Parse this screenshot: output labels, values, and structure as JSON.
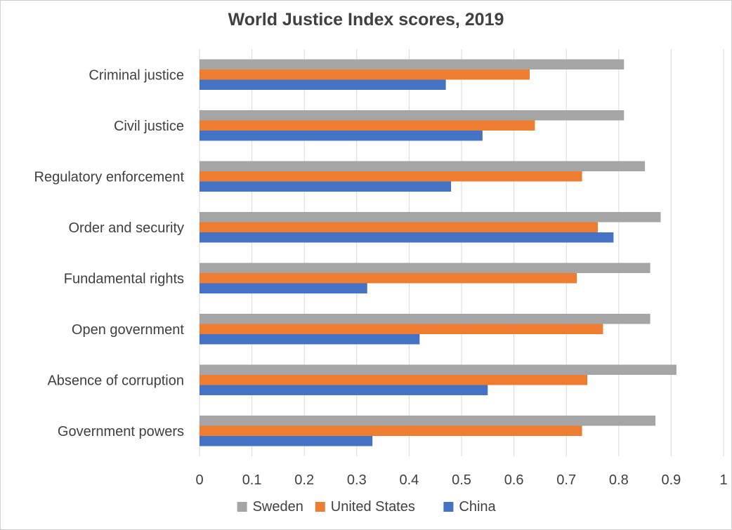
{
  "chart_data": {
    "type": "bar",
    "orientation": "horizontal",
    "title": "World Justice Index scores, 2019",
    "xlabel": "",
    "ylabel": "",
    "xlim": [
      0,
      1
    ],
    "xticks": [
      "0",
      "0.1",
      "0.2",
      "0.3",
      "0.4",
      "0.5",
      "0.6",
      "0.7",
      "0.8",
      "0.9",
      "1"
    ],
    "grid": true,
    "legend_position": "bottom",
    "categories": [
      "Criminal justice",
      "Civil justice",
      "Regulatory enforcement",
      "Order and security",
      "Fundamental rights",
      "Open government",
      "Absence of corruption",
      "Government powers"
    ],
    "series": [
      {
        "name": "Sweden",
        "color": "#a5a5a5",
        "values": [
          0.81,
          0.81,
          0.85,
          0.88,
          0.86,
          0.86,
          0.91,
          0.87
        ]
      },
      {
        "name": "United States",
        "color": "#ed7d31",
        "values": [
          0.63,
          0.64,
          0.73,
          0.76,
          0.72,
          0.77,
          0.74,
          0.73
        ]
      },
      {
        "name": "China",
        "color": "#4472c4",
        "values": [
          0.47,
          0.54,
          0.48,
          0.79,
          0.32,
          0.42,
          0.55,
          0.33
        ]
      }
    ]
  }
}
